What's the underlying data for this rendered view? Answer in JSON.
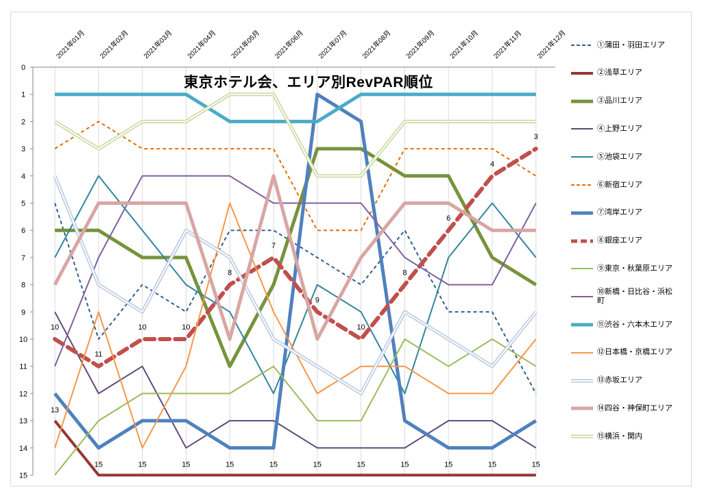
{
  "chart_data": {
    "type": "line",
    "title": "東京ホテル会、エリア別RevPAR順位",
    "categories": [
      "2021年01月",
      "2021年02月",
      "2021年03月",
      "2021年04月",
      "2021年05月",
      "2021年06月",
      "2021年07月",
      "2021年08月",
      "2021年09月",
      "2021年10月",
      "2021年11月",
      "2021年12月"
    ],
    "y_ticks": [
      "0",
      "1",
      "2",
      "3",
      "4",
      "5",
      "6",
      "7",
      "8",
      "9",
      "10",
      "11",
      "12",
      "13",
      "14",
      "15"
    ],
    "ylim": [
      0,
      15
    ],
    "y_reversed": true,
    "grid": "vertical",
    "legend_position": "right",
    "series": [
      {
        "name": "①蒲田・羽田エリア",
        "color": "#2e5d8e",
        "style": "dashed",
        "width": 2,
        "values": [
          5,
          10,
          8,
          9,
          6,
          6,
          7,
          8,
          6,
          9,
          9,
          12
        ]
      },
      {
        "name": "②浅草エリア",
        "color": "#963634",
        "style": "solid",
        "width": 4,
        "values": [
          13,
          15,
          15,
          15,
          15,
          15,
          15,
          15,
          15,
          15,
          15,
          15
        ]
      },
      {
        "name": "③品川エリア",
        "color": "#77933c",
        "style": "solid",
        "width": 5,
        "values": [
          6,
          6,
          7,
          7,
          11,
          8,
          3,
          3,
          4,
          4,
          7,
          8
        ]
      },
      {
        "name": "④上野エリア",
        "color": "#60497a",
        "style": "solid",
        "width": 2,
        "values": [
          9,
          12,
          11,
          14,
          13,
          13,
          14,
          14,
          14,
          13,
          13,
          14
        ]
      },
      {
        "name": "⑤池袋エリア",
        "color": "#31859c",
        "style": "solid",
        "width": 2,
        "values": [
          7,
          4,
          6,
          8,
          9,
          12,
          8,
          9,
          12,
          7,
          5,
          7
        ]
      },
      {
        "name": "⑥新宿エリア",
        "color": "#e46c0a",
        "style": "dashed",
        "width": 2,
        "values": [
          3,
          2,
          3,
          3,
          3,
          3,
          6,
          6,
          3,
          3,
          3,
          4
        ]
      },
      {
        "name": "⑦湾岸エリア",
        "color": "#4f81bd",
        "style": "solid",
        "width": 5,
        "values": [
          12,
          14,
          13,
          13,
          14,
          14,
          1,
          2,
          13,
          14,
          14,
          13
        ]
      },
      {
        "name": "⑧銀座エリア",
        "color": "#c0504d",
        "style": "dashed-thick",
        "width": 6,
        "values": [
          10,
          11,
          10,
          10,
          8,
          7,
          9,
          10,
          8,
          6,
          4,
          3
        ]
      },
      {
        "name": "⑨東京・秋葉原エリア",
        "color": "#9bbb59",
        "style": "solid",
        "width": 2,
        "values": [
          15,
          13,
          12,
          12,
          12,
          11,
          13,
          13,
          10,
          11,
          10,
          11
        ]
      },
      {
        "name": "⑩新橋・日比谷・浜松町",
        "color": "#7f5f9f",
        "style": "solid",
        "width": 2,
        "values": [
          11,
          7,
          4,
          4,
          4,
          5,
          5,
          5,
          7,
          8,
          8,
          5
        ]
      },
      {
        "name": "⑪渋谷・六本木エリア",
        "color": "#4bacc6",
        "style": "solid",
        "width": 5,
        "values": [
          1,
          1,
          1,
          1,
          2,
          2,
          2,
          1,
          1,
          1,
          1,
          1
        ]
      },
      {
        "name": "⑫日本橋・京橋エリア",
        "color": "#f79646",
        "style": "solid",
        "width": 2,
        "values": [
          14,
          9,
          14,
          11,
          5,
          9,
          12,
          11,
          11,
          12,
          12,
          10
        ]
      },
      {
        "name": "⑬赤坂エリア",
        "color": "#b9c7e0",
        "style": "double",
        "width": 3,
        "values": [
          4,
          8,
          9,
          6,
          7,
          10,
          11,
          12,
          9,
          10,
          11,
          9
        ]
      },
      {
        "name": "⑭四谷・神保町エリア",
        "color": "#d8a6a4",
        "style": "solid",
        "width": 5,
        "values": [
          8,
          5,
          5,
          5,
          10,
          4,
          10,
          7,
          5,
          5,
          6,
          6
        ]
      },
      {
        "name": "⑮横浜・関内",
        "color": "#c4d79b",
        "style": "double",
        "width": 3,
        "values": [
          2,
          3,
          2,
          2,
          1,
          1,
          4,
          4,
          2,
          2,
          2,
          2
        ]
      }
    ],
    "data_labels": [
      {
        "series": "②浅草エリア",
        "values": [
          "13",
          "15",
          "15",
          "15",
          "15",
          "15",
          "15",
          "15",
          "15",
          "15",
          "15",
          "15"
        ]
      },
      {
        "series": "⑧銀座エリア",
        "values": [
          "10",
          "11",
          "10",
          "10",
          "8",
          "7",
          "9",
          "10",
          "8",
          "6",
          "4",
          "3"
        ]
      }
    ]
  }
}
